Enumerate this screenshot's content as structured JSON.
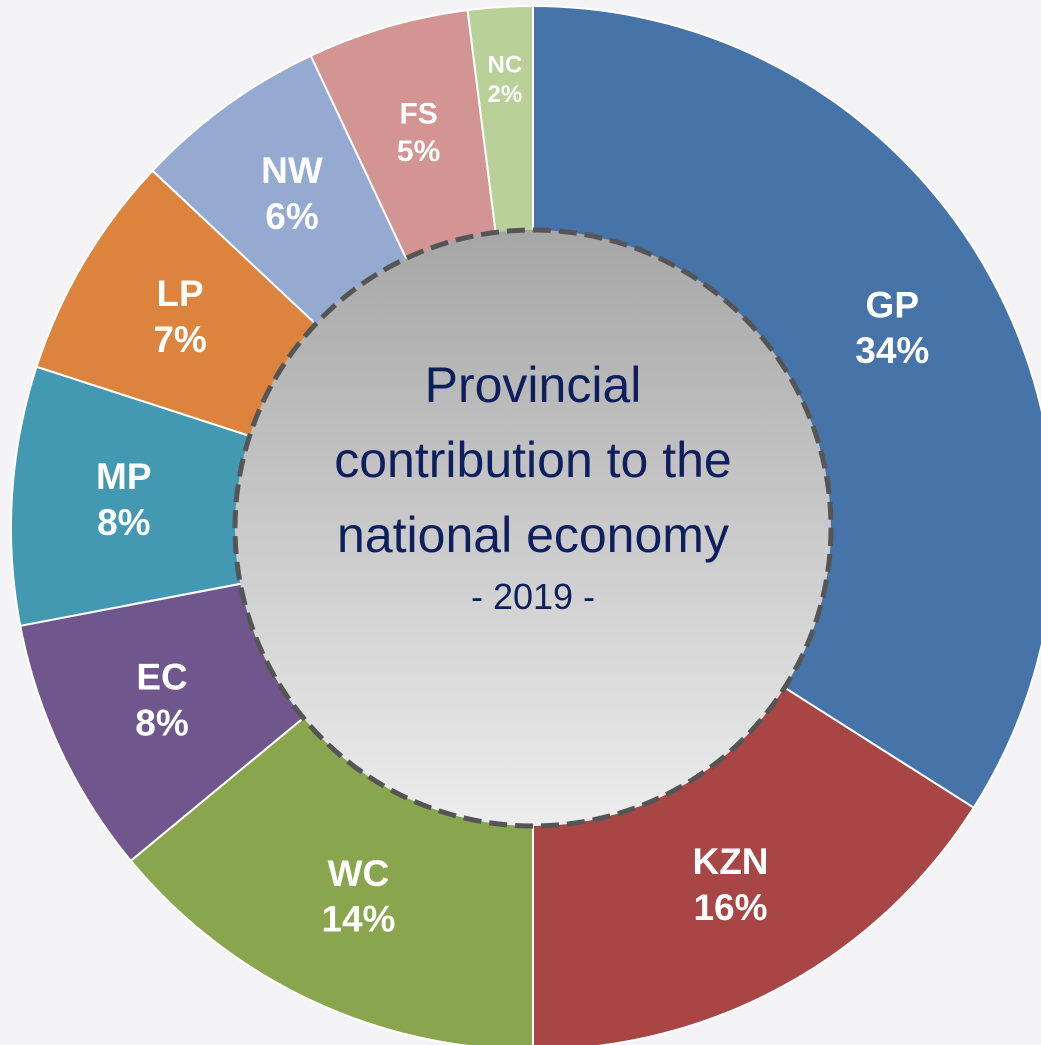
{
  "chart_data": {
    "type": "donut",
    "title": "Provincial contribution to the national economy",
    "subtitle": "- 2019 -",
    "categories": [
      "GP",
      "KZN",
      "WC",
      "EC",
      "MP",
      "LP",
      "NW",
      "FS",
      "NC"
    ],
    "values": [
      34,
      16,
      14,
      8,
      8,
      7,
      6,
      5,
      2
    ],
    "value_labels": [
      "34%",
      "16%",
      "14%",
      "8%",
      "8%",
      "7%",
      "6%",
      "5%",
      "2%"
    ],
    "colors": [
      "#4673a8",
      "#a84645",
      "#89a54e",
      "#6f568d",
      "#4399b1",
      "#dc843e",
      "#94aad1",
      "#d39494",
      "#b9d098"
    ]
  }
}
